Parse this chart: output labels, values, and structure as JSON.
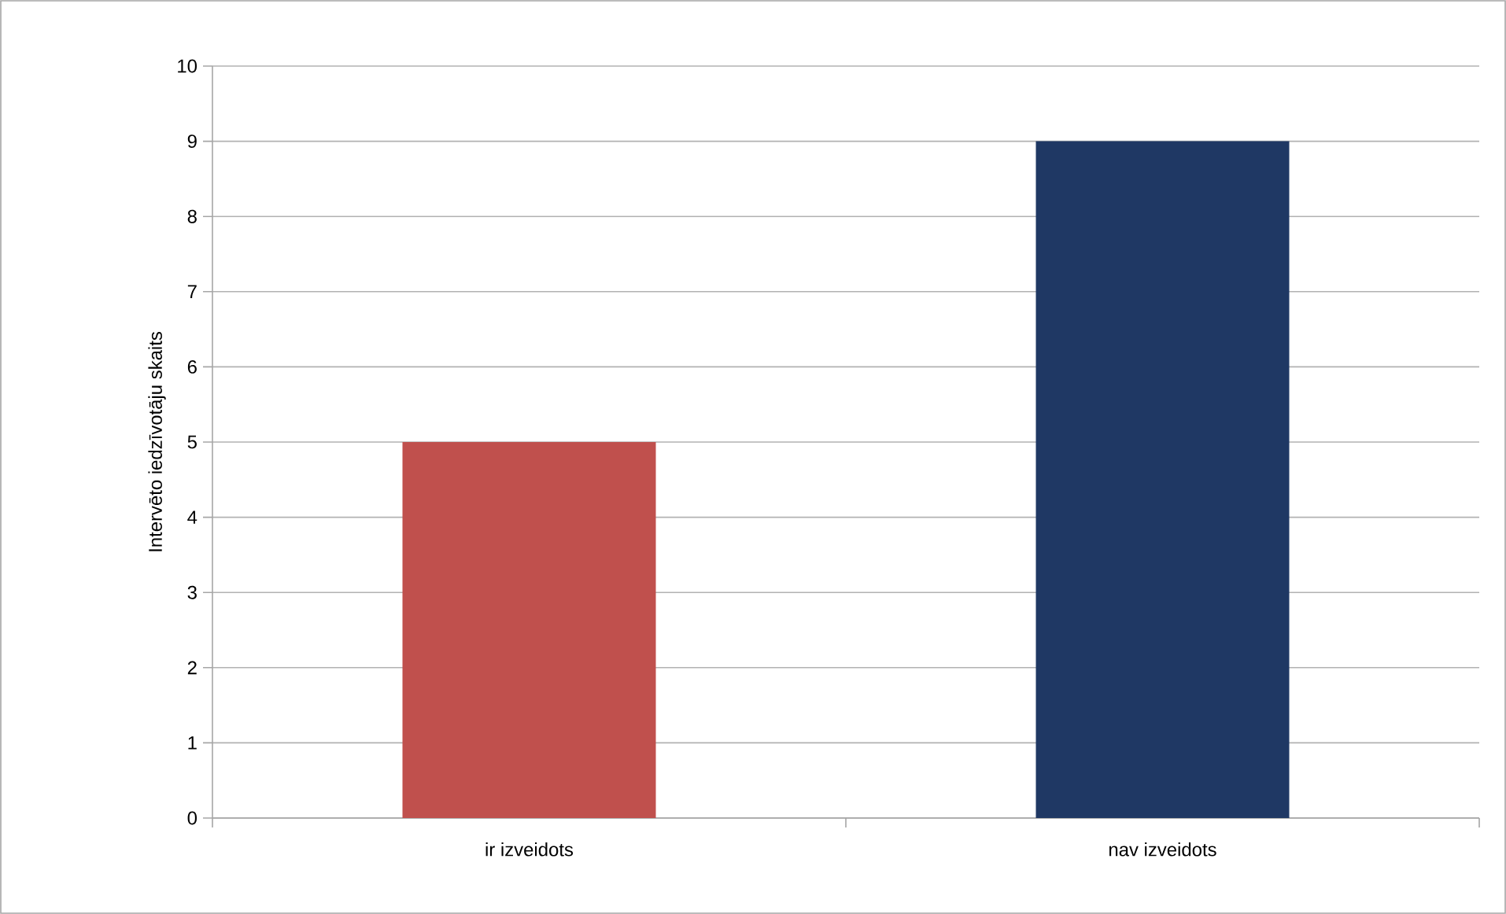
{
  "chart_data": {
    "type": "bar",
    "ylabel": "Intervēto  iedzīvotāju skaits",
    "categories": [
      "ir izveidots",
      "nav izveidots"
    ],
    "values": [
      5,
      9
    ],
    "colors": [
      "#c0504d",
      "#1f3864"
    ],
    "ylim": [
      0,
      10
    ],
    "yticks": [
      0,
      1,
      2,
      3,
      4,
      5,
      6,
      7,
      8,
      9,
      10
    ],
    "grid": "y"
  }
}
